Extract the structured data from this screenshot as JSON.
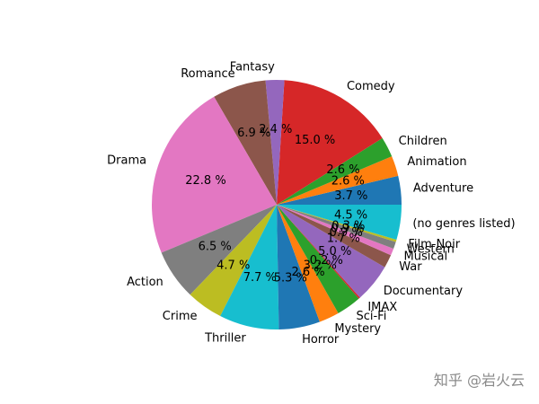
{
  "watermark": "知乎 @岩火云",
  "chart_data": {
    "type": "pie",
    "title": "",
    "start_angle_deg": 0,
    "direction": "counterclockwise",
    "slices": [
      {
        "label": "Adventure",
        "value": 3.7,
        "pct_label": "3.7 %",
        "color": "#1f77b4"
      },
      {
        "label": "Animation",
        "value": 2.6,
        "pct_label": "2.6 %",
        "color": "#ff7f0e"
      },
      {
        "label": "Children",
        "value": 2.6,
        "pct_label": "2.6 %",
        "color": "#2ca02c"
      },
      {
        "label": "Comedy",
        "value": 15.0,
        "pct_label": "15.0 %",
        "color": "#d62728"
      },
      {
        "label": "Fantasy",
        "value": 2.4,
        "pct_label": "2.4 %",
        "color": "#9467bd"
      },
      {
        "label": "Romance",
        "value": 6.9,
        "pct_label": "6.9 %",
        "color": "#8c564b"
      },
      {
        "label": "Drama",
        "value": 22.8,
        "pct_label": "22.8 %",
        "color": "#e377c2"
      },
      {
        "label": "Action",
        "value": 6.5,
        "pct_label": "6.5 %",
        "color": "#7f7f7f"
      },
      {
        "label": "Crime",
        "value": 4.7,
        "pct_label": "4.7 %",
        "color": "#bcbd22"
      },
      {
        "label": "Thriller",
        "value": 7.7,
        "pct_label": "7.7 %",
        "color": "#17becf"
      },
      {
        "label": "Horror",
        "value": 5.3,
        "pct_label": "5.3 %",
        "color": "#1f77b4"
      },
      {
        "label": "Mystery",
        "value": 2.6,
        "pct_label": "2.6 %",
        "color": "#ff7f0e"
      },
      {
        "label": "Sci-Fi",
        "value": 3.2,
        "pct_label": "3.2 %",
        "color": "#2ca02c"
      },
      {
        "label": "IMAX",
        "value": 0.2,
        "pct_label": "0.2 %",
        "color": "#d62728"
      },
      {
        "label": "Documentary",
        "value": 5.0,
        "pct_label": "5.0 %",
        "color": "#9467bd"
      },
      {
        "label": "War",
        "value": 1.7,
        "pct_label": "1.7 %",
        "color": "#8c564b"
      },
      {
        "label": "Musical",
        "value": 0.9,
        "pct_label": "0.9 %",
        "color": "#e377c2"
      },
      {
        "label": "Western",
        "value": 0.9,
        "pct_label": "0.9 %",
        "color": "#7f7f7f"
      },
      {
        "label": "Film-Noir",
        "value": 0.3,
        "pct_label": "0.3 %",
        "color": "#bcbd22"
      },
      {
        "label": "(no genres listed)",
        "value": 4.5,
        "pct_label": "4.5 %",
        "color": "#17becf"
      }
    ]
  }
}
